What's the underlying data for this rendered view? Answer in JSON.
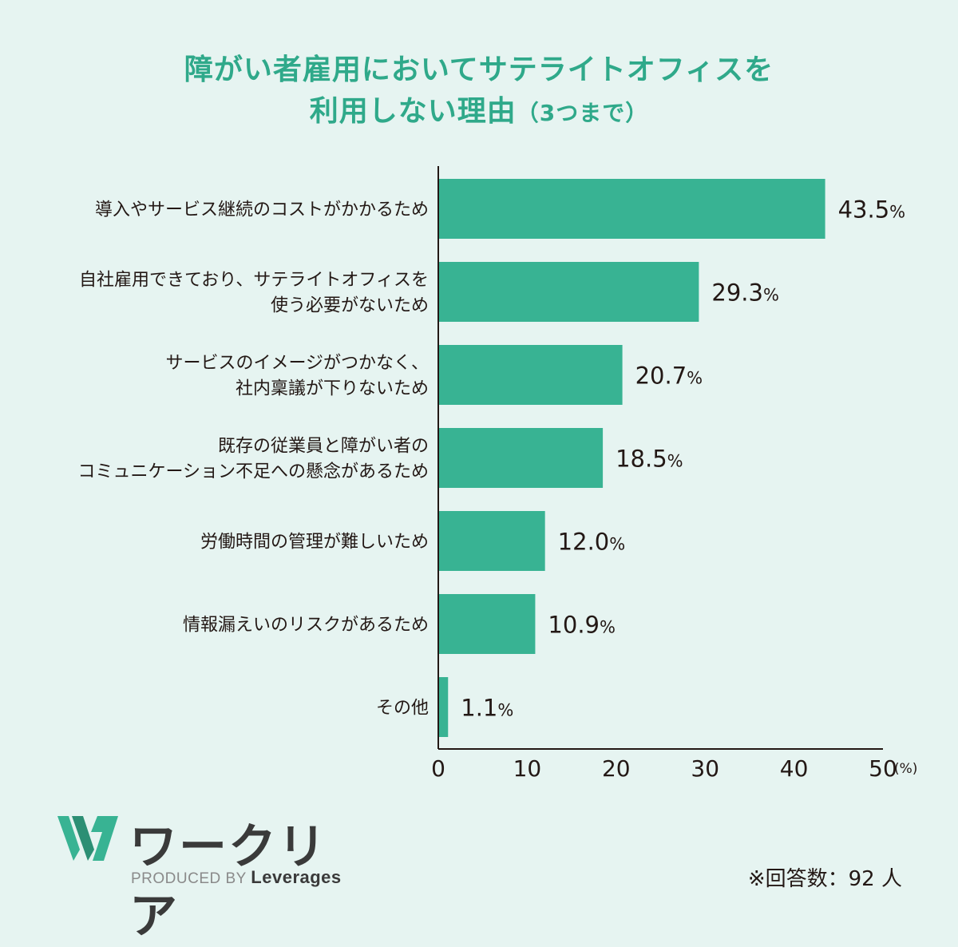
{
  "title": {
    "line1": "障がい者雇用においてサテライトオフィスを",
    "line2": "利用しない理由",
    "line2_sub": "（3つまで）"
  },
  "chart_data": {
    "type": "bar",
    "orientation": "horizontal",
    "categories": [
      [
        "導入やサービス継続のコストがかかるため"
      ],
      [
        "自社雇用できており、サテライトオフィスを",
        "使う必要がないため"
      ],
      [
        "サービスのイメージがつかなく、",
        "社内稟議が下りないため"
      ],
      [
        "既存の従業員と障がい者の",
        "コミュニケーション不足への懸念があるため"
      ],
      [
        "労働時間の管理が難しいため"
      ],
      [
        "情報漏えいのリスクがあるため"
      ],
      [
        "その他"
      ]
    ],
    "values": [
      43.5,
      29.3,
      20.7,
      18.5,
      12.0,
      10.9,
      1.1
    ],
    "value_labels": [
      "43.5",
      "29.3",
      "20.7",
      "18.5",
      "12.0",
      "10.9",
      "1.1"
    ],
    "value_unit": "%",
    "xlim": [
      0,
      50
    ],
    "xticks": [
      "0",
      "10",
      "20",
      "30",
      "40",
      "50"
    ],
    "xunit": "(%)",
    "bar_color": "#38b393",
    "grid": false
  },
  "logo": {
    "name": "ワークリア",
    "produced_by": "PRODUCED BY",
    "brand": "Leverages"
  },
  "footnote": "※回答数：92 人",
  "colors": {
    "accent": "#2fa98a",
    "background": "#e6f4f1"
  }
}
